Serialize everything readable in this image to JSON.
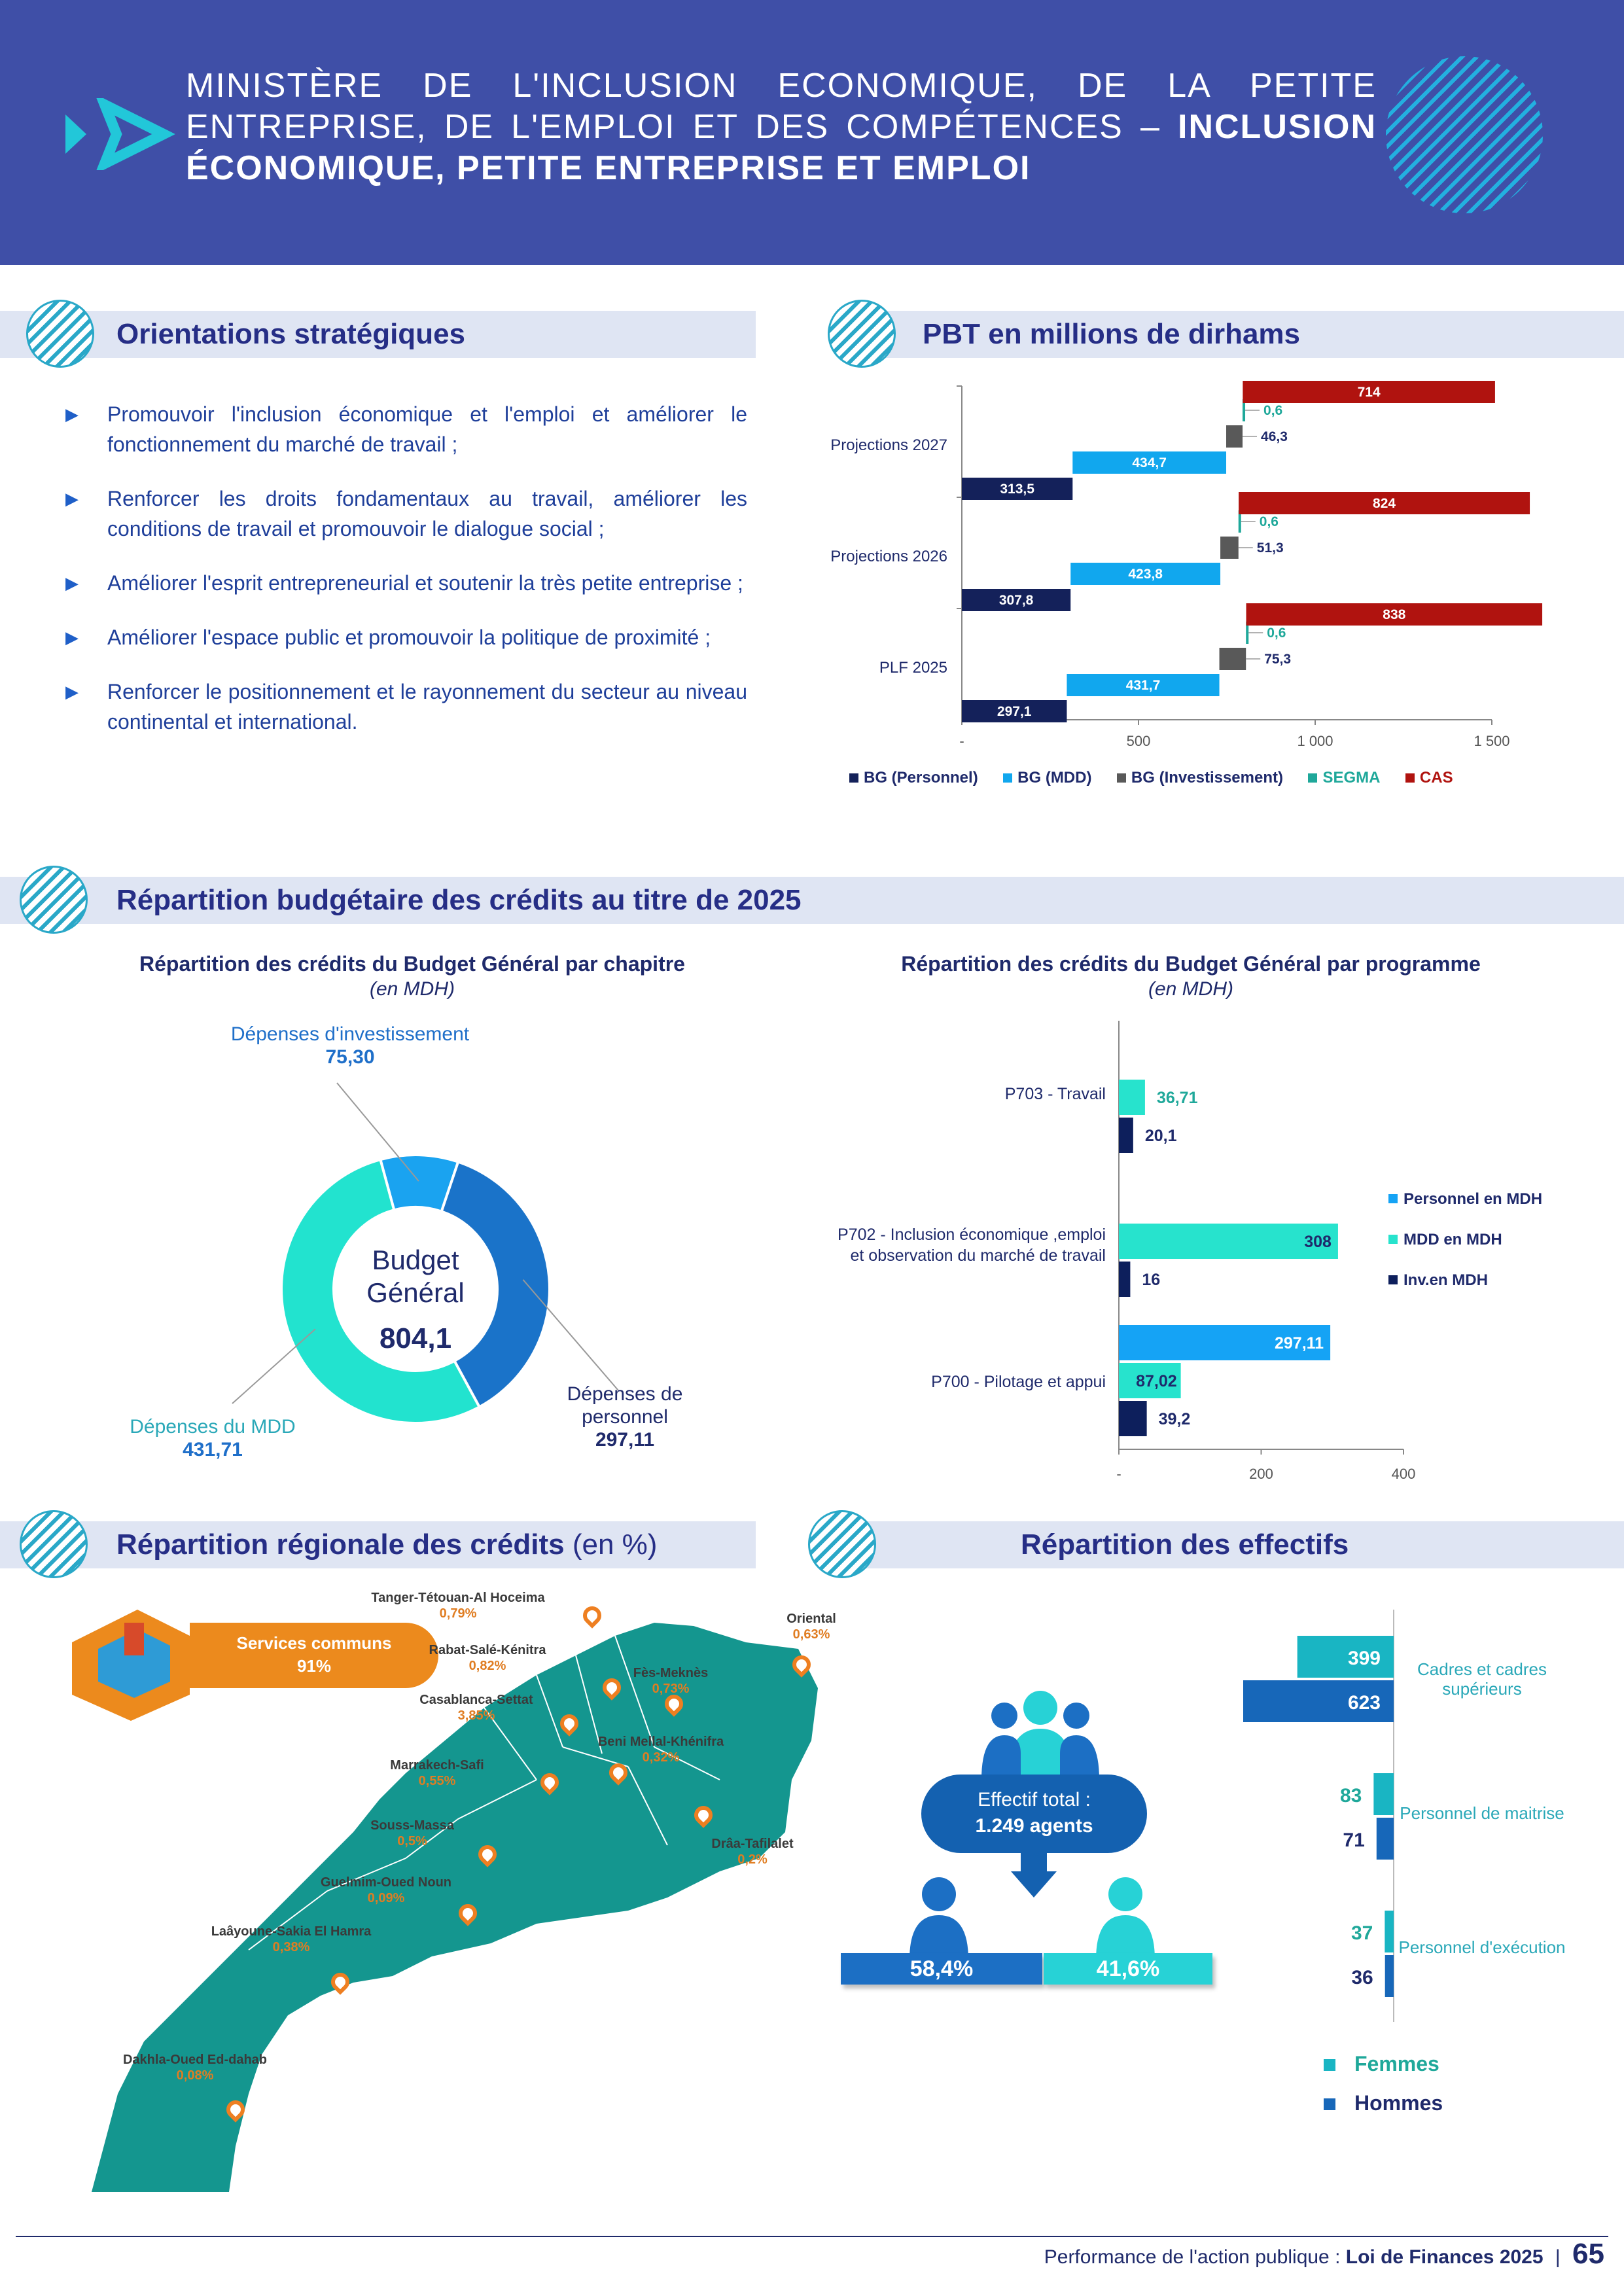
{
  "header": {
    "title_regular": "MINISTÈRE DE L'INCLUSION ECONOMIQUE, DE LA PETITE ENTREPRISE, DE L'EMPLOI ET DES COMPÉTENCES –",
    "title_bold": "INCLUSION ÉCONOMIQUE, PETITE ENTREPRISE ET EMPLOI",
    "accent": "#3f4fa7"
  },
  "sections": {
    "orientations": "Orientations stratégiques",
    "pbt": "PBT en millions de dirhams",
    "repartition": "Répartition budgétaire des crédits au titre de 2025",
    "regionale": "Répartition régionale des crédits",
    "regionale_unit": "(en %)",
    "effectifs": "Répartition des effectifs"
  },
  "orientations": [
    "Promouvoir l'inclusion économique et l'emploi et améliorer le fonctionnement du marché de travail ;",
    "Renforcer les droits fondamentaux au travail, améliorer les conditions de travail et promouvoir le dialogue social ;",
    "Améliorer l'esprit entrepreneurial et soutenir la très petite entreprise ;",
    "Améliorer l'espace public et promouvoir la politique de proximité ;",
    "Renforcer le positionnement et le rayonnement du secteur au niveau continental et international."
  ],
  "chart_data": [
    {
      "type": "bar",
      "orientation": "horizontal",
      "categories": [
        "Projections 2027",
        "Projections 2026",
        "PLF 2025"
      ],
      "series": [
        {
          "name": "BG (Personnel)",
          "values": [
            313.5,
            307.8,
            297.1
          ],
          "labels": [
            "313,5",
            "307,8",
            "297,1"
          ],
          "color": "#14215a"
        },
        {
          "name": "BG (MDD)",
          "values": [
            434.7,
            423.8,
            431.7
          ],
          "labels": [
            "434,7",
            "423,8",
            "431,7"
          ],
          "color": "#11a7ee"
        },
        {
          "name": "BG (Investissement)",
          "values": [
            46.3,
            51.3,
            75.3
          ],
          "labels": [
            "46,3",
            "51,3",
            "75,3"
          ],
          "color": "#595959"
        },
        {
          "name": "SEGMA",
          "values": [
            0.6,
            0.6,
            0.6
          ],
          "labels": [
            "0,6",
            "0,6",
            "0,6"
          ],
          "color": "#1fa89a"
        },
        {
          "name": "CAS",
          "values": [
            714,
            824,
            838
          ],
          "labels": [
            "714",
            "824",
            "838"
          ],
          "color": "#b0130f"
        }
      ],
      "xticks": [
        "-",
        "500",
        "1 000",
        "1 500"
      ],
      "xlim": [
        0,
        1500
      ]
    },
    {
      "type": "pie",
      "title": "Répartition des crédits du Budget Général par chapitre",
      "subtitle": "(en MDH)",
      "center_label": "Budget Général",
      "center_value": "804,1",
      "slices": [
        {
          "name": "Dépenses d'investissement",
          "value": 75.3,
          "label": "75,30",
          "color": "#1aa3f0"
        },
        {
          "name": "Dépenses de personnel",
          "value": 297.11,
          "label": "297,11",
          "color": "#1a73c9"
        },
        {
          "name": "Dépenses du MDD",
          "value": 431.71,
          "label": "431,71",
          "color": "#22e3cf"
        }
      ]
    },
    {
      "type": "bar",
      "orientation": "horizontal",
      "title": "Répartition des crédits du Budget Général par programme",
      "subtitle": "(en MDH)",
      "categories": [
        "P703 - Travail",
        "P702 - Inclusion économique ,emploi et observation du marché de travail",
        "P700 - Pilotage et appui"
      ],
      "series": [
        {
          "name": "Personnel en MDH",
          "values": [
            null,
            null,
            297.11
          ],
          "labels": [
            "",
            "",
            "297,11"
          ],
          "color": "#15a3f5"
        },
        {
          "name": "MDD en MDH",
          "values": [
            36.71,
            308,
            87.02
          ],
          "labels": [
            "36,71",
            "308",
            "87,02"
          ],
          "color": "#27e3cd"
        },
        {
          "name": "Inv.en MDH",
          "values": [
            20.1,
            16,
            39.2
          ],
          "labels": [
            "20,1",
            "16",
            "39,2"
          ],
          "color": "#0d1f5c"
        }
      ],
      "xticks": [
        "-",
        "200",
        "400"
      ],
      "xlim": [
        0,
        400
      ]
    },
    {
      "type": "bar",
      "orientation": "horizontal",
      "categories": [
        "Cadres et cadres supérieurs",
        "Personnel de maitrise",
        "Personnel d'exécution"
      ],
      "series": [
        {
          "name": "Femmes",
          "values": [
            399,
            83,
            37
          ],
          "labels": [
            "399",
            "83",
            "37"
          ],
          "color": "#19b5c3"
        },
        {
          "name": "Hommes",
          "values": [
            623,
            71,
            36
          ],
          "labels": [
            "623",
            "71",
            "36"
          ],
          "color": "#1767b9"
        }
      ]
    }
  ],
  "regional": {
    "services_communs_label": "Services communs",
    "services_communs_value": "91%",
    "regions": [
      {
        "name": "Tanger-Tétouan-Al Hoceima",
        "value": "0,79%"
      },
      {
        "name": "Oriental",
        "value": "0,63%"
      },
      {
        "name": "Rabat-Salé-Kénitra",
        "value": "0,82%"
      },
      {
        "name": "Fès-Meknès",
        "value": "0,73%"
      },
      {
        "name": "Casablanca-Settat",
        "value": "3,85%"
      },
      {
        "name": "Beni Mellal-Khénifra",
        "value": "0,32%"
      },
      {
        "name": "Marrakech-Safi",
        "value": "0,55%"
      },
      {
        "name": "Souss-Massa",
        "value": "0,5%"
      },
      {
        "name": "Drâa-Tafilalet",
        "value": "0,2%"
      },
      {
        "name": "Guelmim-Oued Noun",
        "value": "0,09%"
      },
      {
        "name": "Laâyoune-Sakia El Hamra",
        "value": "0,38%"
      },
      {
        "name": "Dakhla-Oued Ed-dahab",
        "value": "0,08%"
      }
    ]
  },
  "effectifs": {
    "total_label": "Effectif total :",
    "total_value": "1.249 agents",
    "pct_hommes": "58,4%",
    "pct_femmes": "41,6%"
  },
  "footer": {
    "text": "Performance de l'action publique : ",
    "bold": "Loi de Finances 2025",
    "page": "65"
  }
}
